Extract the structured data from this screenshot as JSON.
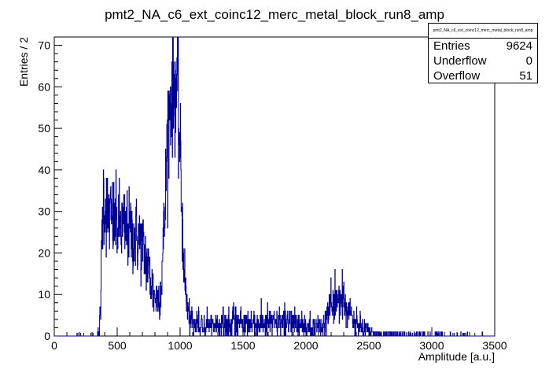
{
  "chart_data": {
    "type": "histogram",
    "title": "pmt2_NA_c6_ext_coinc12_merc_metal_block_run8_amp",
    "xlabel": "Amplitude [a.u.]",
    "ylabel": "Entries / 2",
    "xlim": [
      0,
      3500
    ],
    "ylim": [
      0,
      72
    ],
    "xticks": [
      0,
      500,
      1000,
      1500,
      2000,
      2500,
      3000,
      3500
    ],
    "yticks": [
      0,
      10,
      20,
      30,
      40,
      50,
      60,
      70
    ],
    "bin_width": 2,
    "line_color": "#000099",
    "envelope": {
      "x": [
        340,
        360,
        370,
        380,
        390,
        410,
        450,
        500,
        550,
        600,
        650,
        700,
        750,
        790,
        820,
        850,
        880,
        900,
        930,
        960,
        980,
        1000,
        1020,
        1040,
        1060,
        1080,
        1100,
        1150,
        1200,
        1300,
        1400,
        1500,
        1600,
        1700,
        1800,
        1900,
        2000,
        2100,
        2150,
        2200,
        2250,
        2300,
        2350,
        2400,
        2450,
        2500,
        2550,
        2600,
        2700,
        2800,
        3000,
        3200,
        3500
      ],
      "y": [
        0,
        2,
        10,
        25,
        34,
        31,
        28,
        27,
        26,
        25,
        24,
        22,
        16,
        10,
        9,
        12,
        30,
        50,
        58,
        61,
        57,
        44,
        25,
        12,
        6,
        4,
        3,
        3,
        2,
        3,
        3,
        3,
        3,
        3,
        3,
        3,
        2,
        2,
        3,
        7,
        9,
        8,
        5,
        3,
        2,
        1,
        0.6,
        0.5,
        0.3,
        0.2,
        0.1,
        0.05,
        0
      ]
    }
  },
  "stats": {
    "title": "pmt2_NA_c6_ext_coinc12_merc_metal_block_run8_amp",
    "rows": [
      {
        "label": "Entries",
        "value": "9624"
      },
      {
        "label": "Underflow",
        "value": "0"
      },
      {
        "label": "Overflow",
        "value": "51"
      }
    ]
  }
}
